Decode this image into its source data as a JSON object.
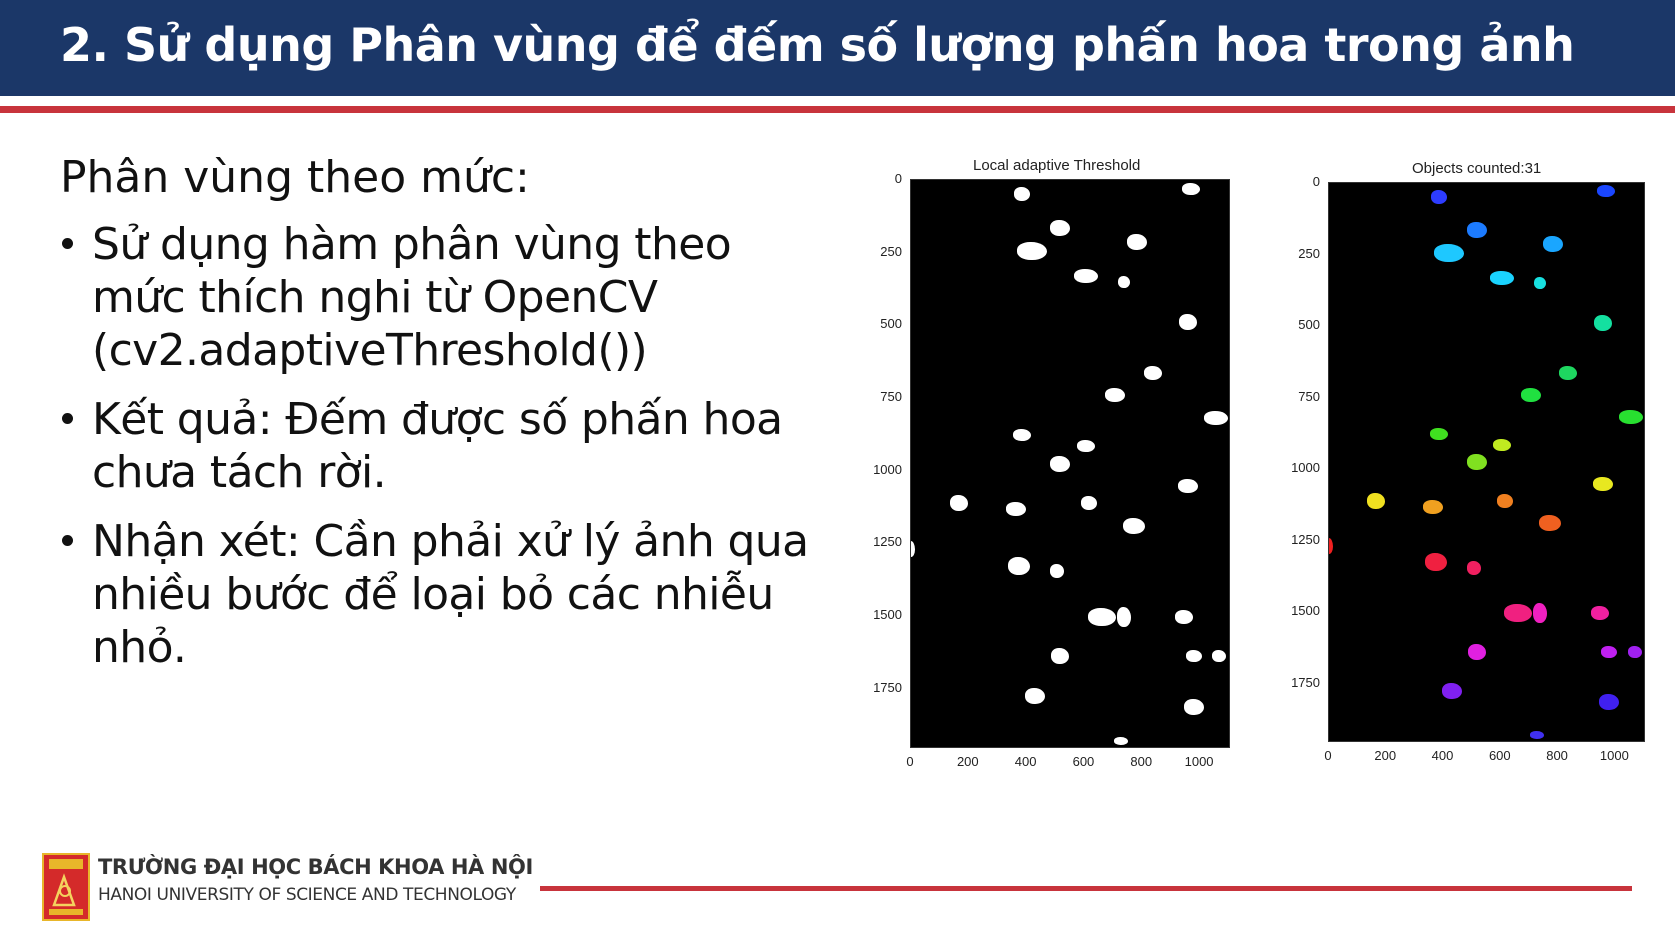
{
  "slide": {
    "title": "2. Sử dụng Phân vùng để đếm số lượng phấn hoa trong ảnh",
    "intro": "Phân vùng theo mức:",
    "bullets": [
      {
        "lines": [
          "Sử dụng hàm phân vùng theo",
          "mức thích nghi từ OpenCV",
          "(cv2.adaptiveThreshold())"
        ]
      },
      {
        "lines": [
          "Kết quả: Đếm được số phấn hoa",
          "chưa tách rời."
        ]
      },
      {
        "lines": [
          "Nhận xét: Cần phải xử lý ảnh qua",
          "nhiều bước để loại bỏ các nhiễu",
          "nhỏ."
        ]
      }
    ]
  },
  "plots": [
    {
      "title": "Local adaptive Threshold",
      "yticks": [
        "0",
        "250",
        "500",
        "750",
        "1000",
        "1250",
        "1500",
        "1750"
      ],
      "xticks": [
        "0",
        "200",
        "400",
        "600",
        "800",
        "1000"
      ]
    },
    {
      "title": "Objects counted:31",
      "yticks": [
        "0",
        "250",
        "500",
        "750",
        "1000",
        "1250",
        "1500",
        "1750"
      ],
      "xticks": [
        "0",
        "200",
        "400",
        "600",
        "800",
        "1000"
      ]
    }
  ],
  "footer": {
    "university_vi": "TRƯỜNG ĐẠI HỌC BÁCH KHOA HÀ NỘI",
    "university_en": "HANOI UNIVERSITY OF SCIENCE AND TECHNOLOGY",
    "accent_color": "#c8343c",
    "header_color": "#1b3768"
  }
}
